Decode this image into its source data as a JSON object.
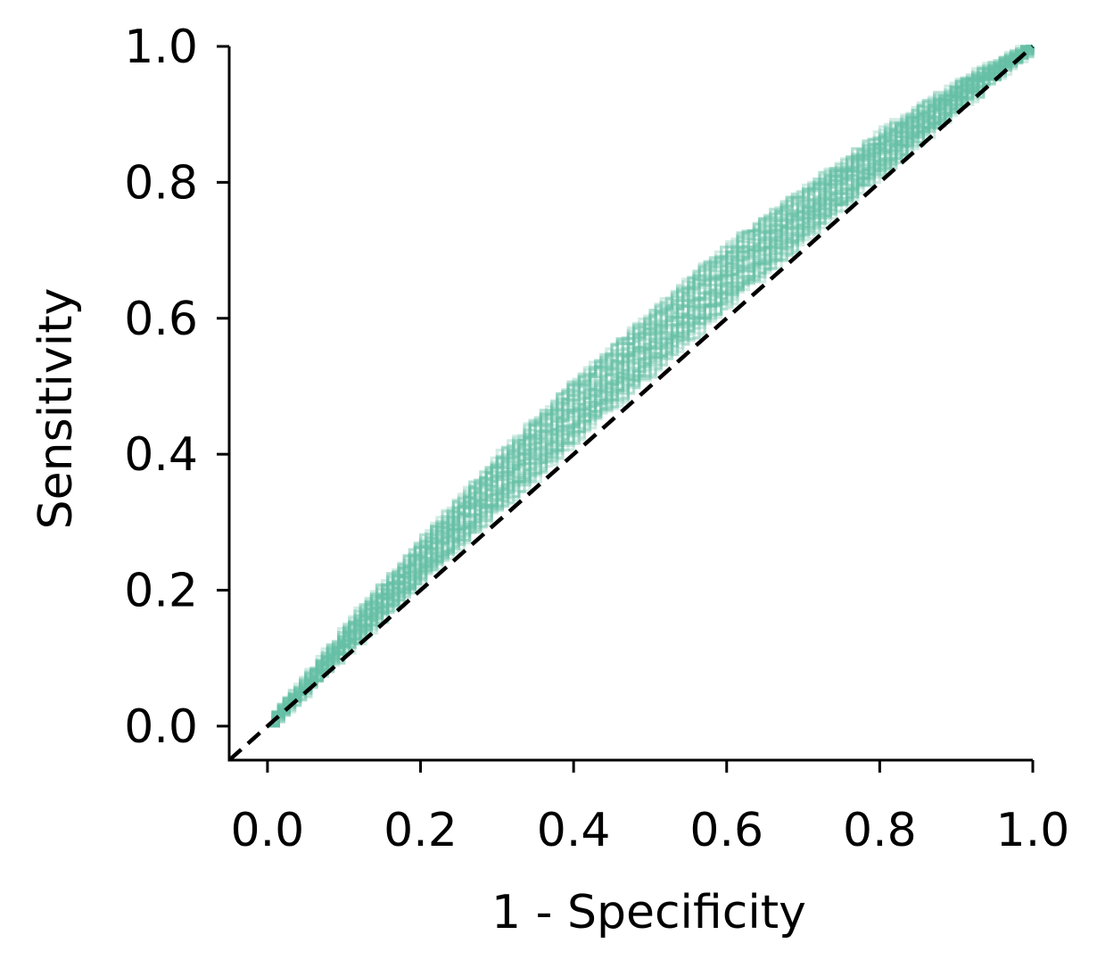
{
  "chart_data": {
    "type": "line",
    "title": "",
    "xlabel": "1 - Specificity",
    "ylabel": "Sensitivity",
    "xlim": [
      -0.05,
      1.0
    ],
    "ylim": [
      -0.05,
      1.0
    ],
    "xticks": [
      "0.0",
      "0.2",
      "0.4",
      "0.6",
      "0.8",
      "1.0"
    ],
    "yticks": [
      "0.0",
      "0.2",
      "0.4",
      "0.6",
      "0.8",
      "1.0"
    ],
    "grid": false,
    "legend": "none",
    "colors": {
      "roc_curves": "#66bfa6",
      "reference_line": "#000000",
      "axes": "#000000"
    },
    "series": [
      {
        "style": "solid",
        "opacity": 0.3,
        "count": 60,
        "x": [
          0.0,
          0.1,
          0.2,
          0.3,
          0.4,
          0.5,
          0.6,
          0.7,
          0.8,
          0.9,
          1.0
        ],
        "y": [
          0.0,
          0.15,
          0.28,
          0.41,
          0.52,
          0.62,
          0.72,
          0.8,
          0.88,
          0.95,
          1.0
        ]
      },
      {
        "style": "dashed",
        "x": [
          -0.05,
          1.0
        ],
        "y": [
          -0.05,
          1.0
        ]
      }
    ]
  }
}
